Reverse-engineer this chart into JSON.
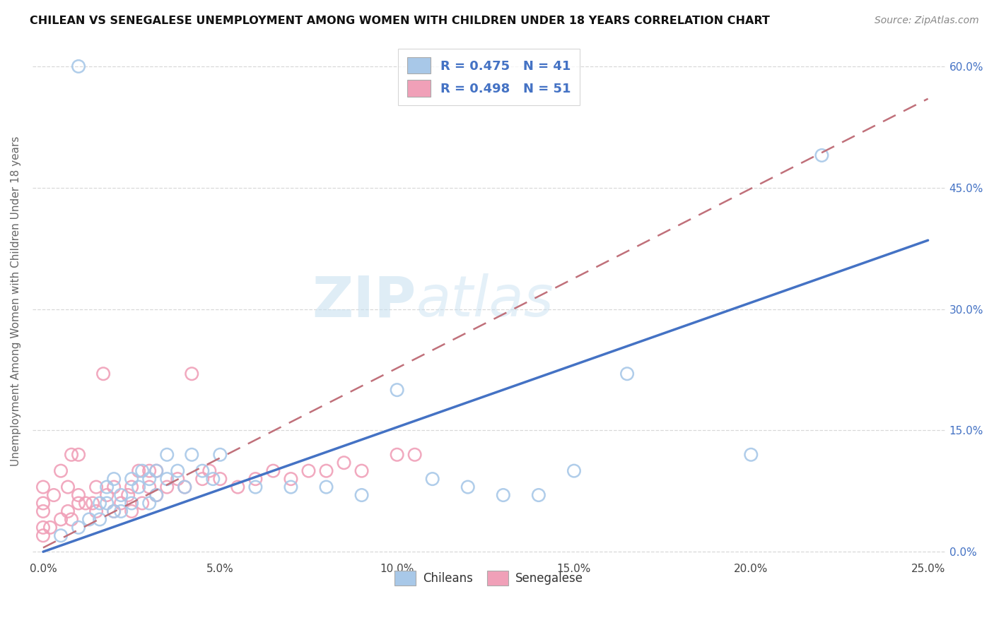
{
  "title": "CHILEAN VS SENEGALESE UNEMPLOYMENT AMONG WOMEN WITH CHILDREN UNDER 18 YEARS CORRELATION CHART",
  "source": "Source: ZipAtlas.com",
  "ylabel": "Unemployment Among Women with Children Under 18 years",
  "xlim": [
    -0.003,
    0.255
  ],
  "ylim": [
    -0.01,
    0.63
  ],
  "xticks": [
    0.0,
    0.05,
    0.1,
    0.15,
    0.2,
    0.25
  ],
  "yticks": [
    0.0,
    0.15,
    0.3,
    0.45,
    0.6
  ],
  "xtick_labels": [
    "0.0%",
    "5.0%",
    "10.0%",
    "15.0%",
    "20.0%",
    "25.0%"
  ],
  "ytick_labels": [
    "0.0%",
    "15.0%",
    "30.0%",
    "45.0%",
    "60.0%"
  ],
  "chilean_color": "#a8c8e8",
  "senegalese_color": "#f0a0b8",
  "chilean_line_color": "#4472c4",
  "senegalese_line_color": "#c0707a",
  "legend_r_chilean": "R = 0.475",
  "legend_n_chilean": "N = 41",
  "legend_r_senegalese": "R = 0.498",
  "legend_n_senegalese": "N = 51",
  "watermark_zip": "ZIP",
  "watermark_atlas": "atlas",
  "chilean_line_x0": 0.0,
  "chilean_line_y0": 0.0,
  "chilean_line_x1": 0.25,
  "chilean_line_y1": 0.385,
  "senegalese_line_x0": 0.0,
  "senegalese_line_y0": 0.005,
  "senegalese_line_x1": 0.25,
  "senegalese_line_y1": 0.56,
  "background_color": "#ffffff",
  "grid_color": "#d0d0d0",
  "chilean_pts_x": [
    0.005,
    0.01,
    0.013,
    0.016,
    0.016,
    0.018,
    0.018,
    0.02,
    0.02,
    0.022,
    0.022,
    0.025,
    0.025,
    0.027,
    0.028,
    0.03,
    0.03,
    0.032,
    0.032,
    0.035,
    0.035,
    0.038,
    0.04,
    0.042,
    0.045,
    0.048,
    0.05,
    0.06,
    0.07,
    0.08,
    0.09,
    0.1,
    0.11,
    0.12,
    0.13,
    0.14,
    0.15,
    0.165,
    0.2,
    0.22,
    0.01
  ],
  "chilean_pts_y": [
    0.02,
    0.03,
    0.04,
    0.04,
    0.06,
    0.06,
    0.08,
    0.05,
    0.09,
    0.05,
    0.07,
    0.06,
    0.09,
    0.08,
    0.1,
    0.06,
    0.09,
    0.07,
    0.1,
    0.09,
    0.12,
    0.1,
    0.08,
    0.12,
    0.1,
    0.09,
    0.12,
    0.08,
    0.08,
    0.08,
    0.07,
    0.2,
    0.09,
    0.08,
    0.07,
    0.07,
    0.1,
    0.22,
    0.12,
    0.49,
    0.6
  ],
  "senegalese_pts_x": [
    0.0,
    0.0,
    0.0,
    0.0,
    0.0,
    0.002,
    0.003,
    0.005,
    0.005,
    0.007,
    0.007,
    0.008,
    0.008,
    0.01,
    0.01,
    0.01,
    0.012,
    0.014,
    0.015,
    0.015,
    0.017,
    0.018,
    0.02,
    0.02,
    0.022,
    0.024,
    0.025,
    0.025,
    0.027,
    0.028,
    0.03,
    0.03,
    0.032,
    0.032,
    0.035,
    0.038,
    0.04,
    0.042,
    0.045,
    0.047,
    0.05,
    0.055,
    0.06,
    0.065,
    0.07,
    0.075,
    0.08,
    0.085,
    0.09,
    0.1,
    0.105
  ],
  "senegalese_pts_y": [
    0.02,
    0.03,
    0.05,
    0.06,
    0.08,
    0.03,
    0.07,
    0.04,
    0.1,
    0.05,
    0.08,
    0.04,
    0.12,
    0.06,
    0.07,
    0.12,
    0.06,
    0.06,
    0.05,
    0.08,
    0.22,
    0.07,
    0.05,
    0.08,
    0.06,
    0.07,
    0.05,
    0.08,
    0.1,
    0.06,
    0.08,
    0.1,
    0.07,
    0.1,
    0.08,
    0.09,
    0.08,
    0.22,
    0.09,
    0.1,
    0.09,
    0.08,
    0.09,
    0.1,
    0.09,
    0.1,
    0.1,
    0.11,
    0.1,
    0.12,
    0.12
  ]
}
